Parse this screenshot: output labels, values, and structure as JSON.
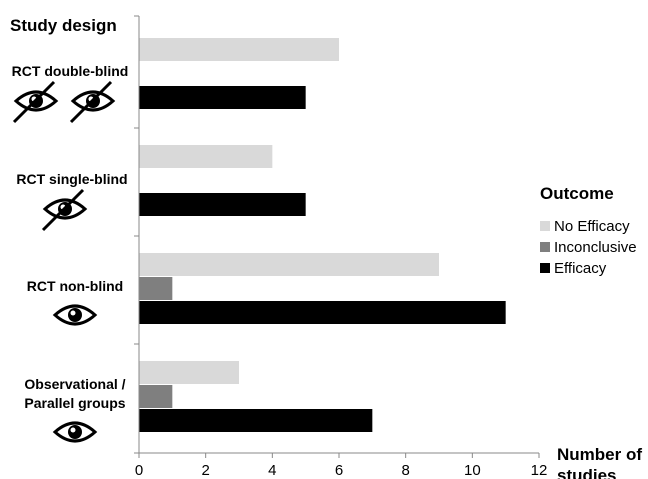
{
  "chart_data": {
    "type": "bar",
    "orientation": "horizontal",
    "y_axis_title": "Study design",
    "x_axis_title": "Number of studies",
    "categories": [
      {
        "label": "RCT double-blind",
        "icons": [
          "eye-crossed",
          "eye-crossed"
        ]
      },
      {
        "label": "RCT single-blind",
        "icons": [
          "eye-crossed"
        ]
      },
      {
        "label": "RCT non-blind",
        "icons": [
          "eye"
        ]
      },
      {
        "label": "Observational / Parallel groups",
        "icons": [
          "eye"
        ]
      }
    ],
    "series": [
      {
        "name": "No Efficacy",
        "color": "#d9d9d9",
        "values": [
          6,
          4,
          9,
          3
        ]
      },
      {
        "name": "Inconclusive",
        "color": "#7f7f7f",
        "values": [
          0,
          0,
          1,
          1
        ]
      },
      {
        "name": "Efficacy",
        "color": "#000000",
        "values": [
          5,
          5,
          11,
          7
        ]
      }
    ],
    "xlim": [
      0,
      12
    ],
    "xticks": [
      0,
      2,
      4,
      6,
      8,
      10,
      12
    ],
    "legend": {
      "title": "Outcome",
      "placement": "right"
    },
    "grid": false
  }
}
